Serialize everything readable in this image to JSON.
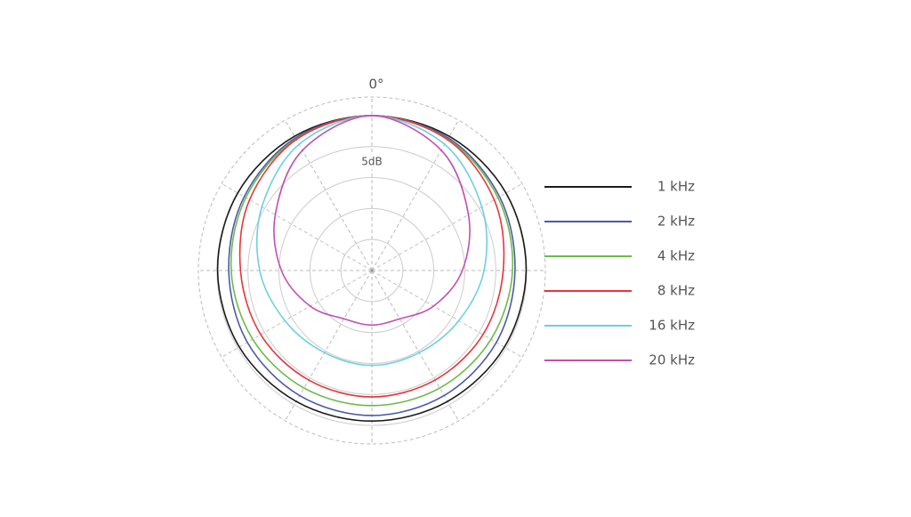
{
  "chart_data": {
    "type": "polar",
    "angle_label": "0°",
    "r_label": "5dB",
    "x": [
      0,
      30,
      60,
      90,
      120,
      150,
      180,
      210,
      240,
      270,
      300,
      330
    ],
    "xticks": [
      0,
      30,
      60,
      90,
      120,
      150,
      180,
      210,
      240,
      270,
      300,
      330
    ],
    "rlim": [
      -25,
      3
    ],
    "rticks": [
      -20,
      -15,
      -10,
      -5,
      0,
      3
    ],
    "series": [
      {
        "name": "1 kHz",
        "color": "#1a1a1a",
        "values": [
          0,
          0,
          0,
          -0.1,
          -0.3,
          -0.6,
          -0.7,
          -0.6,
          -0.3,
          -0.1,
          0,
          0
        ]
      },
      {
        "name": "2 kHz",
        "color": "#4a5aa8",
        "values": [
          0,
          -0.3,
          -1.2,
          -1.9,
          -1.8,
          -1.7,
          -1.6,
          -1.7,
          -1.8,
          -1.9,
          -1.2,
          -0.3
        ]
      },
      {
        "name": "4 kHz",
        "color": "#6cba4a",
        "values": [
          0,
          -0.5,
          -1.5,
          -2.3,
          -2.8,
          -3.1,
          -3.2,
          -3.1,
          -2.8,
          -2.3,
          -1.5,
          -0.5
        ]
      },
      {
        "name": "8 kHz",
        "color": "#e8343a",
        "values": [
          0,
          -0.6,
          -2.2,
          -3.8,
          -4.3,
          -4.6,
          -4.6,
          -4.6,
          -4.3,
          -3.8,
          -2.2,
          -0.6
        ]
      },
      {
        "name": "16 kHz",
        "color": "#6cd0e0",
        "values": [
          0,
          -1.5,
          -4.5,
          -6.9,
          -8.8,
          -9.7,
          -9.7,
          -9.7,
          -8.8,
          -6.9,
          -4.5,
          -1.5
        ]
      },
      {
        "name": "20 kHz",
        "color": "#c050b0",
        "values": [
          0,
          -2.6,
          -7,
          -10.4,
          -13.5,
          -16,
          -16.2,
          -16,
          -13.5,
          -10.4,
          -7,
          -2.6
        ]
      }
    ]
  }
}
